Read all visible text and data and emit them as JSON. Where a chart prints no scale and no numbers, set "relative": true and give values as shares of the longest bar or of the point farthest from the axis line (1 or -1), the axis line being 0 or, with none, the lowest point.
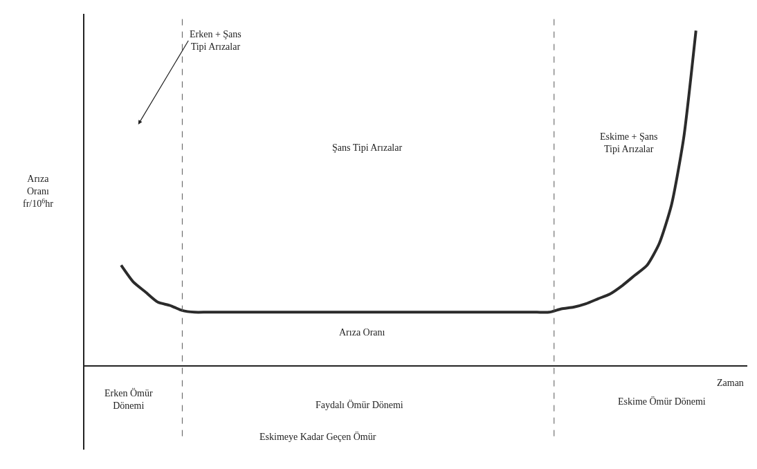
{
  "chart_data": {
    "type": "line",
    "relative": true,
    "xlabel": "Zaman",
    "ylabel": "Arıza\nOranı\nfr/10$^{6}$hr",
    "categories": [
      null,
      null,
      null,
      null,
      null,
      null,
      null,
      null,
      null,
      null,
      null,
      null,
      null,
      null,
      null,
      null,
      null,
      null,
      null,
      null,
      null,
      null,
      null,
      null,
      null,
      null,
      null,
      null,
      null,
      null,
      null,
      null,
      null,
      null,
      null,
      null,
      null,
      null,
      null,
      null,
      null,
      null,
      null,
      null,
      null,
      null,
      null,
      null,
      null,
      null,
      null
    ],
    "series": [
      {
        "color": "#2b2b2b",
        "values": [
          null,
          null,
          null,
          0.3,
          0.25,
          0.22,
          0.19,
          0.18,
          0.165,
          0.16,
          0.16,
          0.16,
          0.16,
          0.16,
          0.16,
          0.16,
          0.16,
          0.16,
          0.16,
          0.16,
          0.16,
          0.16,
          0.16,
          0.16,
          0.16,
          0.16,
          0.16,
          0.16,
          0.16,
          0.16,
          0.16,
          0.16,
          0.16,
          0.16,
          0.16,
          0.16,
          0.16,
          0.16,
          0.16,
          0.17,
          0.175,
          0.185,
          0.2,
          0.215,
          0.24,
          0.27,
          0.3,
          0.365,
          0.48,
          0.68,
          1
        ]
      }
    ],
    "annotations": [
      "Erken + Şans\nTipi Arızalar",
      "Şans Tipi Arızalar",
      "Eskime + Şans\nTipi Arızalar",
      "Arıza Oranı",
      "Erken Ömür\nDönemi",
      "Faydalı Ömür Dönemi",
      "Eskime Ömür Dönemi",
      "Eskimeye Kadar Geçen Ömür"
    ],
    "marker": "none",
    "line_style": "solid"
  }
}
